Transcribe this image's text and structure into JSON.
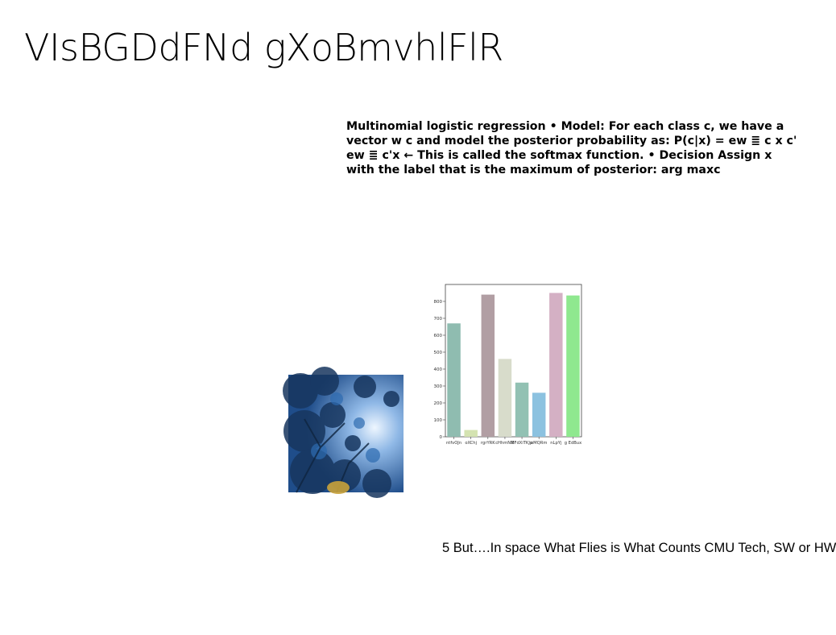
{
  "slide": {
    "title": "VIsBGDdFNd gXoBmvhlFlR",
    "body_text": "Multinomial logistic regression • Model: For each class c, we have a vector w c and model the posterior probability as: P(c|x) = ew ≣ c x c' ew ≣ c'x ← This is called the softmax function. • Decision Assign x with the label that is the maximum of posterior: arg maxc",
    "footer": "5 But….In space What Flies is What Counts CMU Tech, SW or HW"
  },
  "photo": {
    "icon": "tree-canopy-photo"
  },
  "chart_data": {
    "type": "bar",
    "categories": [
      "ntfvOJn",
      "oXChj",
      "rgrYRK",
      "cHhmNM",
      "BFdXiTKJp",
      "oMQRm",
      "nLpYj",
      "g EdBux"
    ],
    "values": [
      670,
      40,
      840,
      460,
      320,
      260,
      850,
      835
    ],
    "colors": [
      "#8fbcb0",
      "#d4e3b1",
      "#b19ea3",
      "#d8dccb",
      "#92c1b3",
      "#8cc2e0",
      "#d4b0c4",
      "#8fe88f"
    ],
    "yticks": [
      0,
      100,
      200,
      300,
      400,
      500,
      600,
      700,
      800
    ],
    "ylim": [
      0,
      900
    ],
    "xlabel": "",
    "ylabel": "",
    "title": ""
  }
}
